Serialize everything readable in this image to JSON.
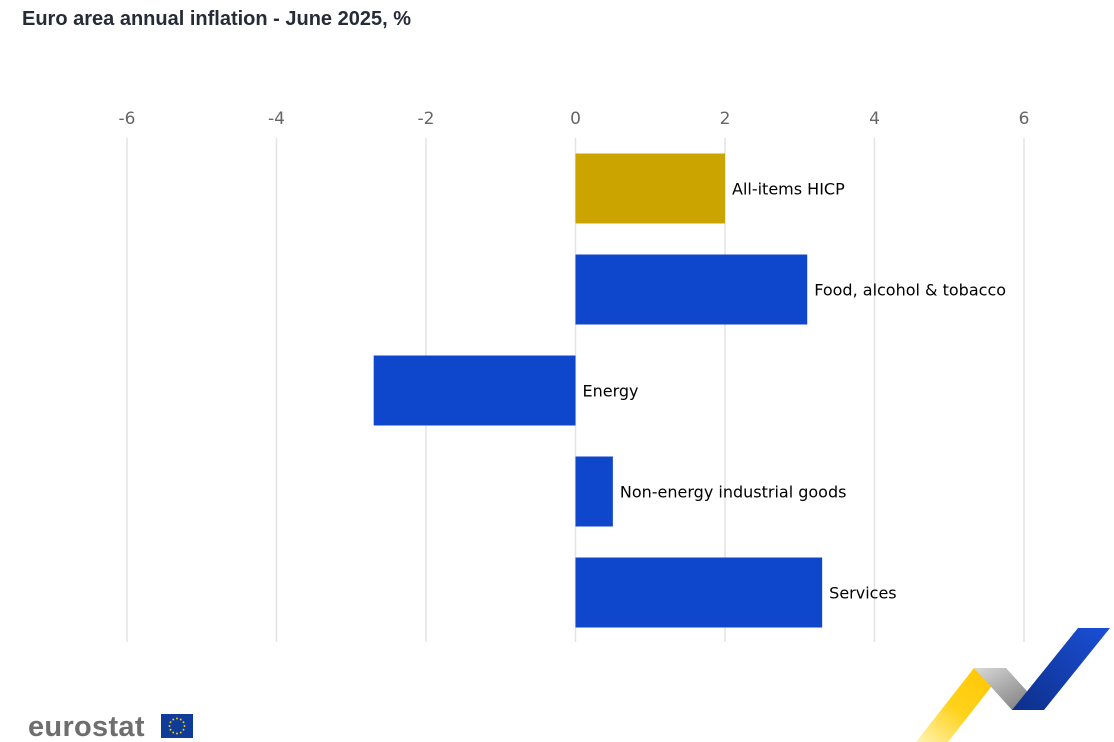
{
  "chart_data": {
    "type": "bar",
    "orientation": "horizontal",
    "title": "Euro area annual inflation - June 2025, %",
    "categories": [
      "All-items HICP",
      "Food, alcohol & tobacco",
      "Energy",
      "Non-energy industrial goods",
      "Services"
    ],
    "values": [
      2.0,
      3.1,
      -2.7,
      0.5,
      3.3
    ],
    "bar_colors": [
      "#cca400",
      "#0f47cc",
      "#0f47cc",
      "#0f47cc",
      "#0f47cc"
    ],
    "xlim": [
      -6,
      6
    ],
    "xticks": [
      -6,
      -4,
      -2,
      0,
      2,
      4,
      6
    ],
    "xlabel": "",
    "ylabel": "",
    "grid": true,
    "axis_position": "top"
  },
  "branding": {
    "logo_text": "eurostat",
    "colors": {
      "eu_blue": "#0f3c99",
      "eu_star": "#ffcc00",
      "logo_gray": "#6e6e6e"
    }
  }
}
